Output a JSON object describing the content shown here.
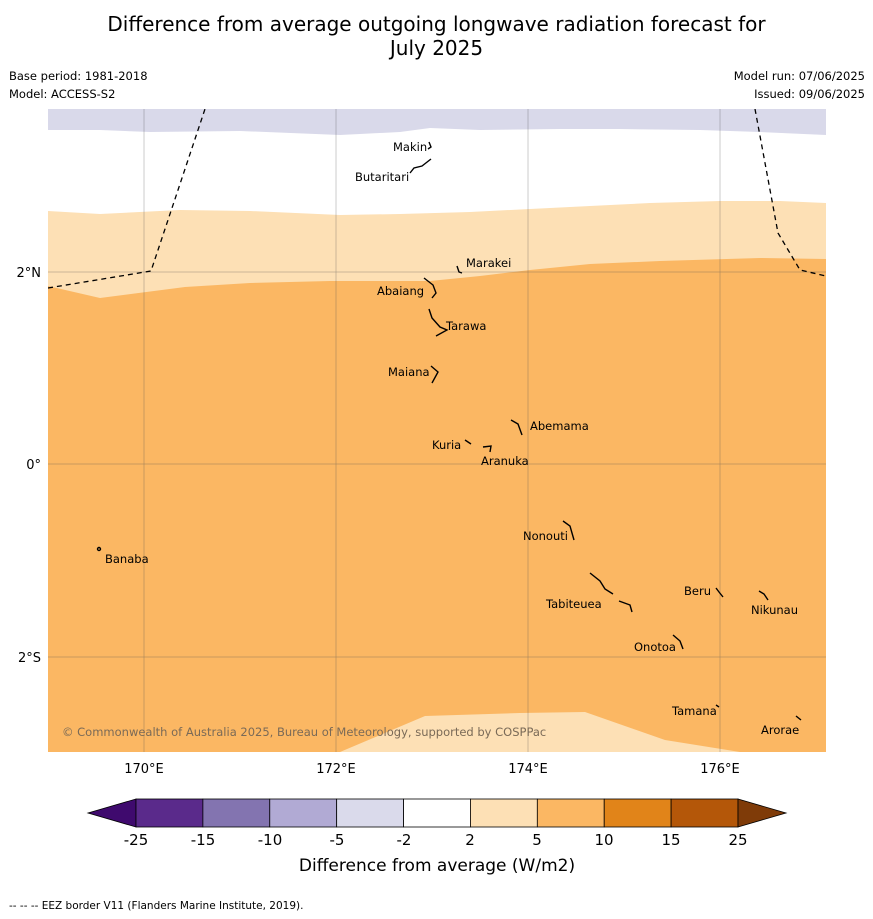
{
  "title": {
    "line1": "Difference from average outgoing longwave radiation forecast for",
    "line2": "July 2025"
  },
  "meta": {
    "base_period": "Base period: 1981-2018",
    "model": "Model: ACCESS-S2",
    "model_run": "Model run: 07/06/2025",
    "issued": "Issued: 09/06/2025"
  },
  "map": {
    "copyright": "© Commonwealth of Australia 2025, Bureau of Meteorology, supported by COSPPac",
    "lon_labels": [
      "170°E",
      "172°E",
      "174°E",
      "176°E"
    ],
    "lat_labels": [
      "2°N",
      "0°",
      "2°S"
    ],
    "islands": [
      "Makin",
      "Butaritari",
      "Marakei",
      "Abaiang",
      "Tarawa",
      "Maiana",
      "Abemama",
      "Kuria",
      "Aranuka",
      "Nonouti",
      "Banaba",
      "Beru",
      "Nikunau",
      "Tabiteuea",
      "Onotoa",
      "Tamana",
      "Arorae"
    ],
    "colors": {
      "lavender": "#d9d9ea",
      "white": "#ffffff",
      "light_orange": "#fde0b5",
      "orange": "#fbb763"
    }
  },
  "colorbar": {
    "ticks": [
      "-25",
      "-15",
      "-10",
      "-5",
      "-2",
      "2",
      "5",
      "10",
      "15",
      "25"
    ],
    "colors": [
      "#3f0a6e",
      "#5a2a8b",
      "#8374b0",
      "#b1aad4",
      "#dadaeb",
      "#ffffff",
      "#fde0b5",
      "#fbb763",
      "#e18419",
      "#b45709",
      "#7f3b08"
    ],
    "label": "Difference from average (W/m2)"
  },
  "footer": "-- -- -- EEZ border V11 (Flanders Marine Institute, 2019)."
}
